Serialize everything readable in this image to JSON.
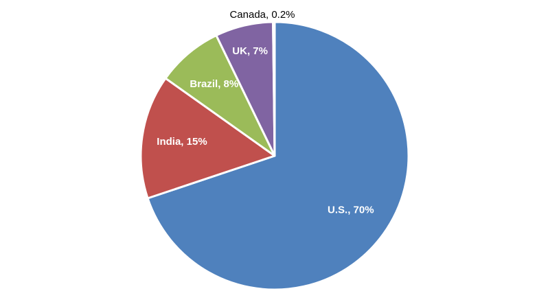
{
  "chart_data": {
    "type": "pie",
    "values": [
      70,
      15,
      8,
      7,
      0.2
    ],
    "value_labels": [
      "U.S., 70%",
      "India, 15%",
      "Brazil, 8%",
      "UK, 7%",
      "Canada,  0.2%"
    ],
    "colors": [
      "#4f81bd",
      "#c0504d",
      "#9bbb59",
      "#8064a2",
      "#4bacc6"
    ]
  }
}
